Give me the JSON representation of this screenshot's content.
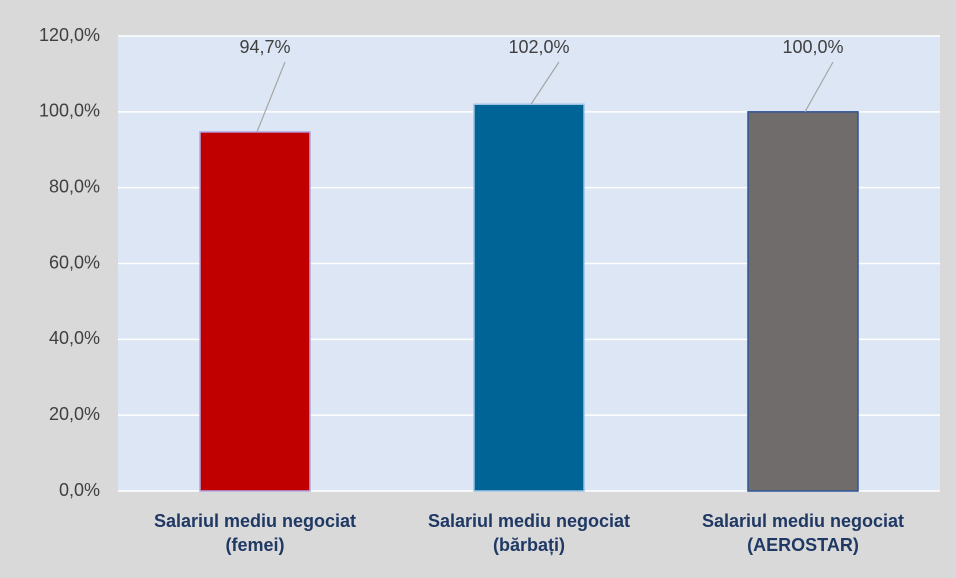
{
  "chart_data": {
    "type": "bar",
    "categories": [
      "Salariul mediu negociat (femei)",
      "Salariul mediu negociat (bărbați)",
      "Salariul mediu negociat (AEROSTAR)"
    ],
    "values": [
      94.7,
      102.0,
      100.0
    ],
    "value_labels": [
      "94,7%",
      "102,0%",
      "100,0%"
    ],
    "colors": [
      "#c00000",
      "#006496",
      "#716c6c"
    ],
    "ylim": [
      0,
      120
    ],
    "yticks": [
      {
        "value": 0,
        "label": "0,0%"
      },
      {
        "value": 20,
        "label": "20,0%"
      },
      {
        "value": 40,
        "label": "40,0%"
      },
      {
        "value": 60,
        "label": "60,0%"
      },
      {
        "value": 80,
        "label": "80,0%"
      },
      {
        "value": 100,
        "label": "100,0%"
      },
      {
        "value": 120,
        "label": "120,0%"
      }
    ],
    "grid": true
  }
}
